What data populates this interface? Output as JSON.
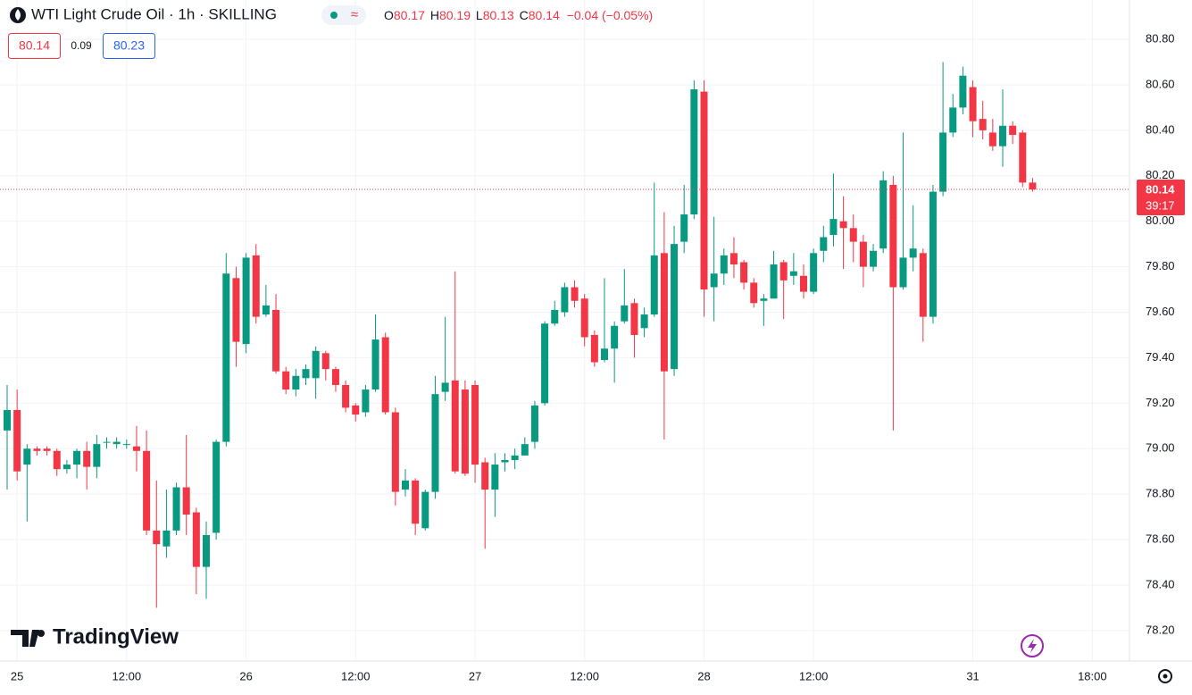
{
  "header": {
    "title": "WTI Light Crude Oil · 1h · SKILLING",
    "ohlc": [
      {
        "key": "O",
        "value": 80.17
      },
      {
        "key": "H",
        "value": 80.19
      },
      {
        "key": "L",
        "value": 80.13
      },
      {
        "key": "C",
        "value": 80.14
      }
    ],
    "change": "−0.04 (−0.05%)",
    "sell": 80.14,
    "spread": 0.09,
    "buy": 80.23
  },
  "chart_data": {
    "type": "candlestick",
    "categories": [
      null,
      "25",
      null,
      null,
      null,
      null,
      null,
      null,
      null,
      null,
      null,
      null,
      "12:00",
      null,
      null,
      null,
      null,
      null,
      null,
      null,
      null,
      null,
      null,
      null,
      "26",
      null,
      null,
      null,
      null,
      null,
      null,
      null,
      null,
      null,
      null,
      "12:00",
      null,
      null,
      null,
      null,
      null,
      null,
      null,
      null,
      null,
      null,
      null,
      "27",
      null,
      null,
      null,
      null,
      null,
      null,
      null,
      null,
      null,
      null,
      "12:00",
      null,
      null,
      null,
      null,
      null,
      null,
      null,
      null,
      null,
      null,
      null,
      "28",
      null,
      null,
      null,
      null,
      null,
      null,
      null,
      null,
      null,
      null,
      "12:00",
      null,
      null,
      null,
      null,
      null,
      null,
      null,
      null,
      null,
      null,
      null,
      null,
      null,
      null,
      null,
      "31",
      null,
      null,
      null,
      null,
      null,
      null,
      null,
      null,
      null,
      null,
      null,
      "18:00",
      null,
      null,
      null
    ],
    "open": [
      79.08,
      79.17,
      78.93,
      79.0,
      79.0,
      78.99,
      78.91,
      78.93,
      78.99,
      78.92,
      79.03,
      79.02,
      79.02,
      79.01,
      78.99,
      78.64,
      78.57,
      78.64,
      78.83,
      78.72,
      78.48,
      78.63,
      79.03,
      79.75,
      79.46,
      79.85,
      79.59,
      79.61,
      79.34,
      79.26,
      79.31,
      79.31,
      79.42,
      79.35,
      79.28,
      79.19,
      79.16,
      79.26,
      79.49,
      79.16,
      78.82,
      78.86,
      78.65,
      78.81,
      79.25,
      79.3,
      79.26,
      79.28,
      78.94,
      78.82,
      78.94,
      78.95,
      78.97,
      79.03,
      79.2,
      79.55,
      79.6,
      79.71,
      79.66,
      79.5,
      79.39,
      79.44,
      79.56,
      79.64,
      79.53,
      79.59,
      79.86,
      79.35,
      79.91,
      80.03,
      80.57,
      79.71,
      79.77,
      79.86,
      79.82,
      79.73,
      79.65,
      79.66,
      79.82,
      79.76,
      79.76,
      79.69,
      79.87,
      79.94,
      80.0,
      79.97,
      79.91,
      79.8,
      79.88,
      80.16,
      79.71,
      79.84,
      79.86,
      79.58,
      80.13,
      80.39,
      80.5,
      80.59,
      80.45,
      80.39,
      80.33,
      80.42,
      80.39,
      80.17,
      null,
      null,
      null,
      null,
      null,
      null,
      null,
      null,
      null
    ],
    "high": [
      79.28,
      79.26,
      79.02,
      79.01,
      79.01,
      79.0,
      78.95,
      79.0,
      79.03,
      79.06,
      79.05,
      79.05,
      79.04,
      79.1,
      79.08,
      78.86,
      78.82,
      78.85,
      79.06,
      78.74,
      78.68,
      79.04,
      79.86,
      79.8,
      79.86,
      79.9,
      79.72,
      79.68,
      79.36,
      79.35,
      79.37,
      79.45,
      79.43,
      79.36,
      79.3,
      79.2,
      79.28,
      79.59,
      79.51,
      79.18,
      78.91,
      78.87,
      78.82,
      79.32,
      79.58,
      79.78,
      79.3,
      79.3,
      78.96,
      78.98,
      78.98,
      79.0,
      79.05,
      79.21,
      79.56,
      79.65,
      79.73,
      79.74,
      79.68,
      79.52,
      79.75,
      79.56,
      79.79,
      79.66,
      79.62,
      80.17,
      80.04,
      79.98,
      80.16,
      80.62,
      80.62,
      80.02,
      79.88,
      79.93,
      79.83,
      79.75,
      79.68,
      79.87,
      79.83,
      79.86,
      79.81,
      79.88,
      79.98,
      80.21,
      80.11,
      80.03,
      79.94,
      79.9,
      80.22,
      80.2,
      80.39,
      80.07,
      79.88,
      80.16,
      80.7,
      80.56,
      80.68,
      80.62,
      80.53,
      80.45,
      80.58,
      80.44,
      80.4,
      80.19,
      null,
      null,
      null,
      null,
      null,
      null,
      null,
      null,
      null
    ],
    "low": [
      78.82,
      78.86,
      78.68,
      78.97,
      78.97,
      78.88,
      78.89,
      78.87,
      78.82,
      78.87,
      79.0,
      79.0,
      79.0,
      78.9,
      78.62,
      78.3,
      78.52,
      78.62,
      78.62,
      78.36,
      78.34,
      78.6,
      79.01,
      79.36,
      79.42,
      79.55,
      79.58,
      79.33,
      79.24,
      79.23,
      79.28,
      79.22,
      79.3,
      79.25,
      79.16,
      79.12,
      79.14,
      79.25,
      79.15,
      78.75,
      78.79,
      78.62,
      78.64,
      78.78,
      79.21,
      78.89,
      78.88,
      78.85,
      78.56,
      78.7,
      78.9,
      78.91,
      78.97,
      79.0,
      79.19,
      79.54,
      79.58,
      79.62,
      79.45,
      79.36,
      79.38,
      79.29,
      79.55,
      79.4,
      79.49,
      79.58,
      79.04,
      79.32,
      79.86,
      80.01,
      79.58,
      79.56,
      79.72,
      79.75,
      79.7,
      79.62,
      79.54,
      79.66,
      79.57,
      79.72,
      79.66,
      79.68,
      79.82,
      79.89,
      79.79,
      79.82,
      79.71,
      79.78,
      79.86,
      79.08,
      79.7,
      79.78,
      79.47,
      79.55,
      80.11,
      80.37,
      80.47,
      80.37,
      80.36,
      80.31,
      80.24,
      80.34,
      80.15,
      80.13,
      null,
      null,
      null,
      null,
      null,
      null,
      null,
      null,
      null
    ],
    "close": [
      79.17,
      78.9,
      79.0,
      78.99,
      78.99,
      78.91,
      78.93,
      78.99,
      78.92,
      79.02,
      79.03,
      79.03,
      79.02,
      78.99,
      78.64,
      78.58,
      78.64,
      78.83,
      78.71,
      78.48,
      78.62,
      79.03,
      79.77,
      79.47,
      79.84,
      79.58,
      79.63,
      79.34,
      79.26,
      79.32,
      79.35,
      79.43,
      79.35,
      79.28,
      79.18,
      79.15,
      79.26,
      79.48,
      79.16,
      78.81,
      78.86,
      78.67,
      78.81,
      79.24,
      79.29,
      78.9,
      78.89,
      78.93,
      78.82,
      78.93,
      78.95,
      78.97,
      79.02,
      79.19,
      79.55,
      79.61,
      79.71,
      79.65,
      79.49,
      79.38,
      79.44,
      79.54,
      79.63,
      79.5,
      79.59,
      79.85,
      79.34,
      79.9,
      80.03,
      80.58,
      79.7,
      79.77,
      79.85,
      79.81,
      79.73,
      79.64,
      79.66,
      79.81,
      79.74,
      79.78,
      79.69,
      79.86,
      79.93,
      80.01,
      79.97,
      79.91,
      79.8,
      79.87,
      80.18,
      79.71,
      79.84,
      79.88,
      79.58,
      80.13,
      80.39,
      80.5,
      80.64,
      80.44,
      80.4,
      80.33,
      80.42,
      80.38,
      80.17,
      80.14,
      null,
      null,
      null,
      null,
      null,
      null,
      null,
      null,
      null
    ],
    "up_color": "#089981",
    "down_color": "#f23645",
    "ylim": [
      78.066,
      80.973
    ],
    "yticks": [
      {
        "value": 78.2,
        "label": "78.20"
      },
      {
        "value": 78.4,
        "label": "78.40"
      },
      {
        "value": 78.6,
        "label": "78.60"
      },
      {
        "value": 78.8,
        "label": "78.80"
      },
      {
        "value": 79.0,
        "label": "79.00"
      },
      {
        "value": 79.2,
        "label": "79.20"
      },
      {
        "value": 79.4,
        "label": "79.40"
      },
      {
        "value": 79.6,
        "label": "79.60"
      },
      {
        "value": 79.8,
        "label": "79.80"
      },
      {
        "value": 80.0,
        "label": "80.00"
      },
      {
        "value": 80.2,
        "label": "80.20"
      },
      {
        "value": 80.4,
        "label": "80.40"
      },
      {
        "value": 80.6,
        "label": "80.60"
      },
      {
        "value": 80.8,
        "label": "80.80"
      }
    ],
    "grid": true,
    "last_price": 80.14,
    "countdown": "39:17",
    "watermark": "TradingView"
  }
}
